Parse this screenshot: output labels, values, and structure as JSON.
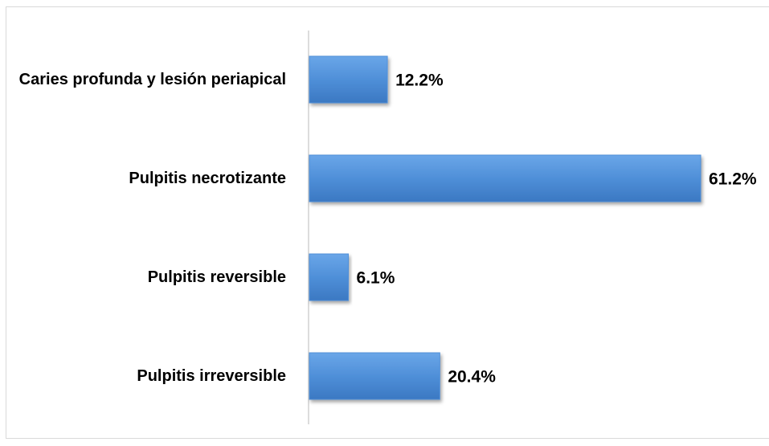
{
  "chart_data": {
    "type": "bar",
    "orientation": "horizontal",
    "categories": [
      "Caries profunda y lesión periapical",
      "Pulpitis necrotizante",
      "Pulpitis reversible",
      "Pulpitis irreversible"
    ],
    "values": [
      12.2,
      61.2,
      6.1,
      20.4
    ],
    "value_labels": [
      "12.2%",
      "61.2%",
      "6.1%",
      "20.4%"
    ],
    "color": "#4f8fd8"
  }
}
